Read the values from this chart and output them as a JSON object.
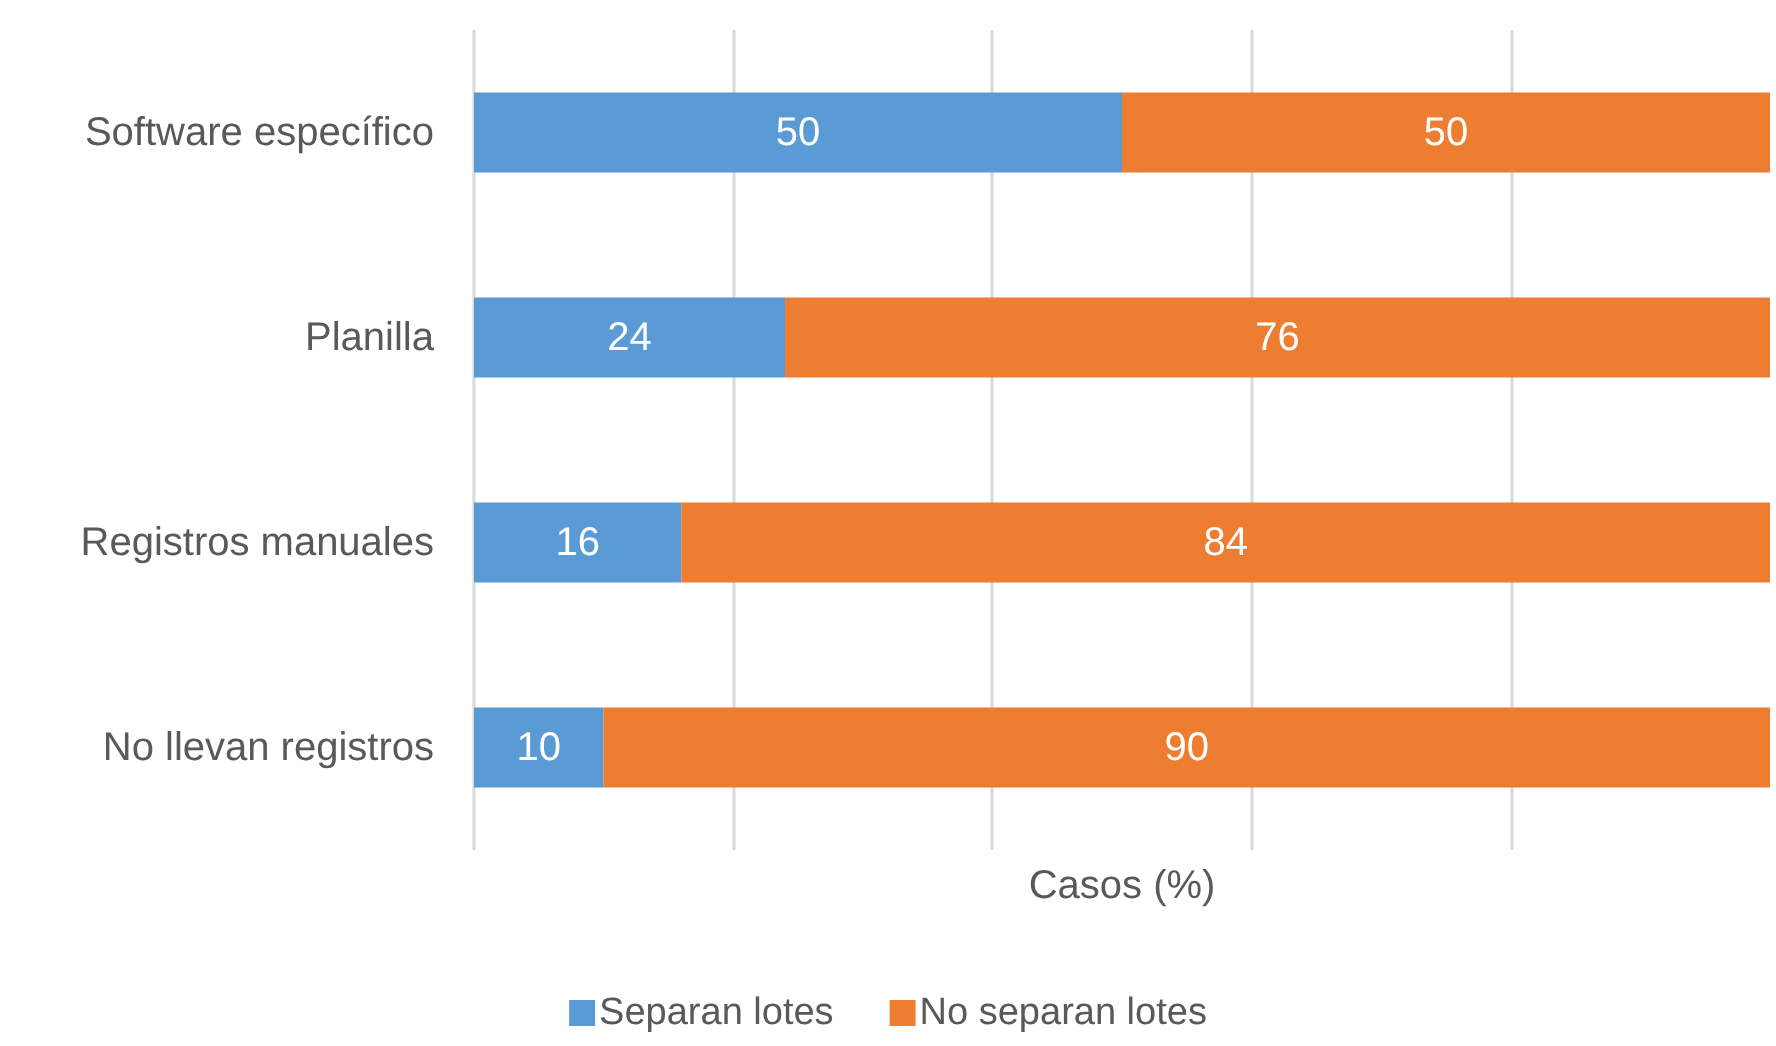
{
  "chart_data": {
    "type": "bar",
    "orientation": "horizontal",
    "stacked": true,
    "categories": [
      "Software específico",
      "Planilla",
      "Registros manuales",
      "No llevan registros"
    ],
    "series": [
      {
        "name": "Separan lotes",
        "color": "#5b9bd5",
        "values": [
          50,
          24,
          16,
          10
        ]
      },
      {
        "name": "No separan lotes",
        "color": "#ed7d31",
        "values": [
          50,
          76,
          84,
          90
        ]
      }
    ],
    "xlabel": "Casos (%)",
    "xlim": [
      0,
      100
    ],
    "xticks": [
      {
        "value": 0,
        "label": null
      },
      {
        "value": 20,
        "label": null
      },
      {
        "value": 40,
        "label": null
      },
      {
        "value": 60,
        "label": null
      },
      {
        "value": 80,
        "label": null
      }
    ],
    "grid": "x",
    "legend": "bottom",
    "tick_labels": "y",
    "data_labels": true
  }
}
